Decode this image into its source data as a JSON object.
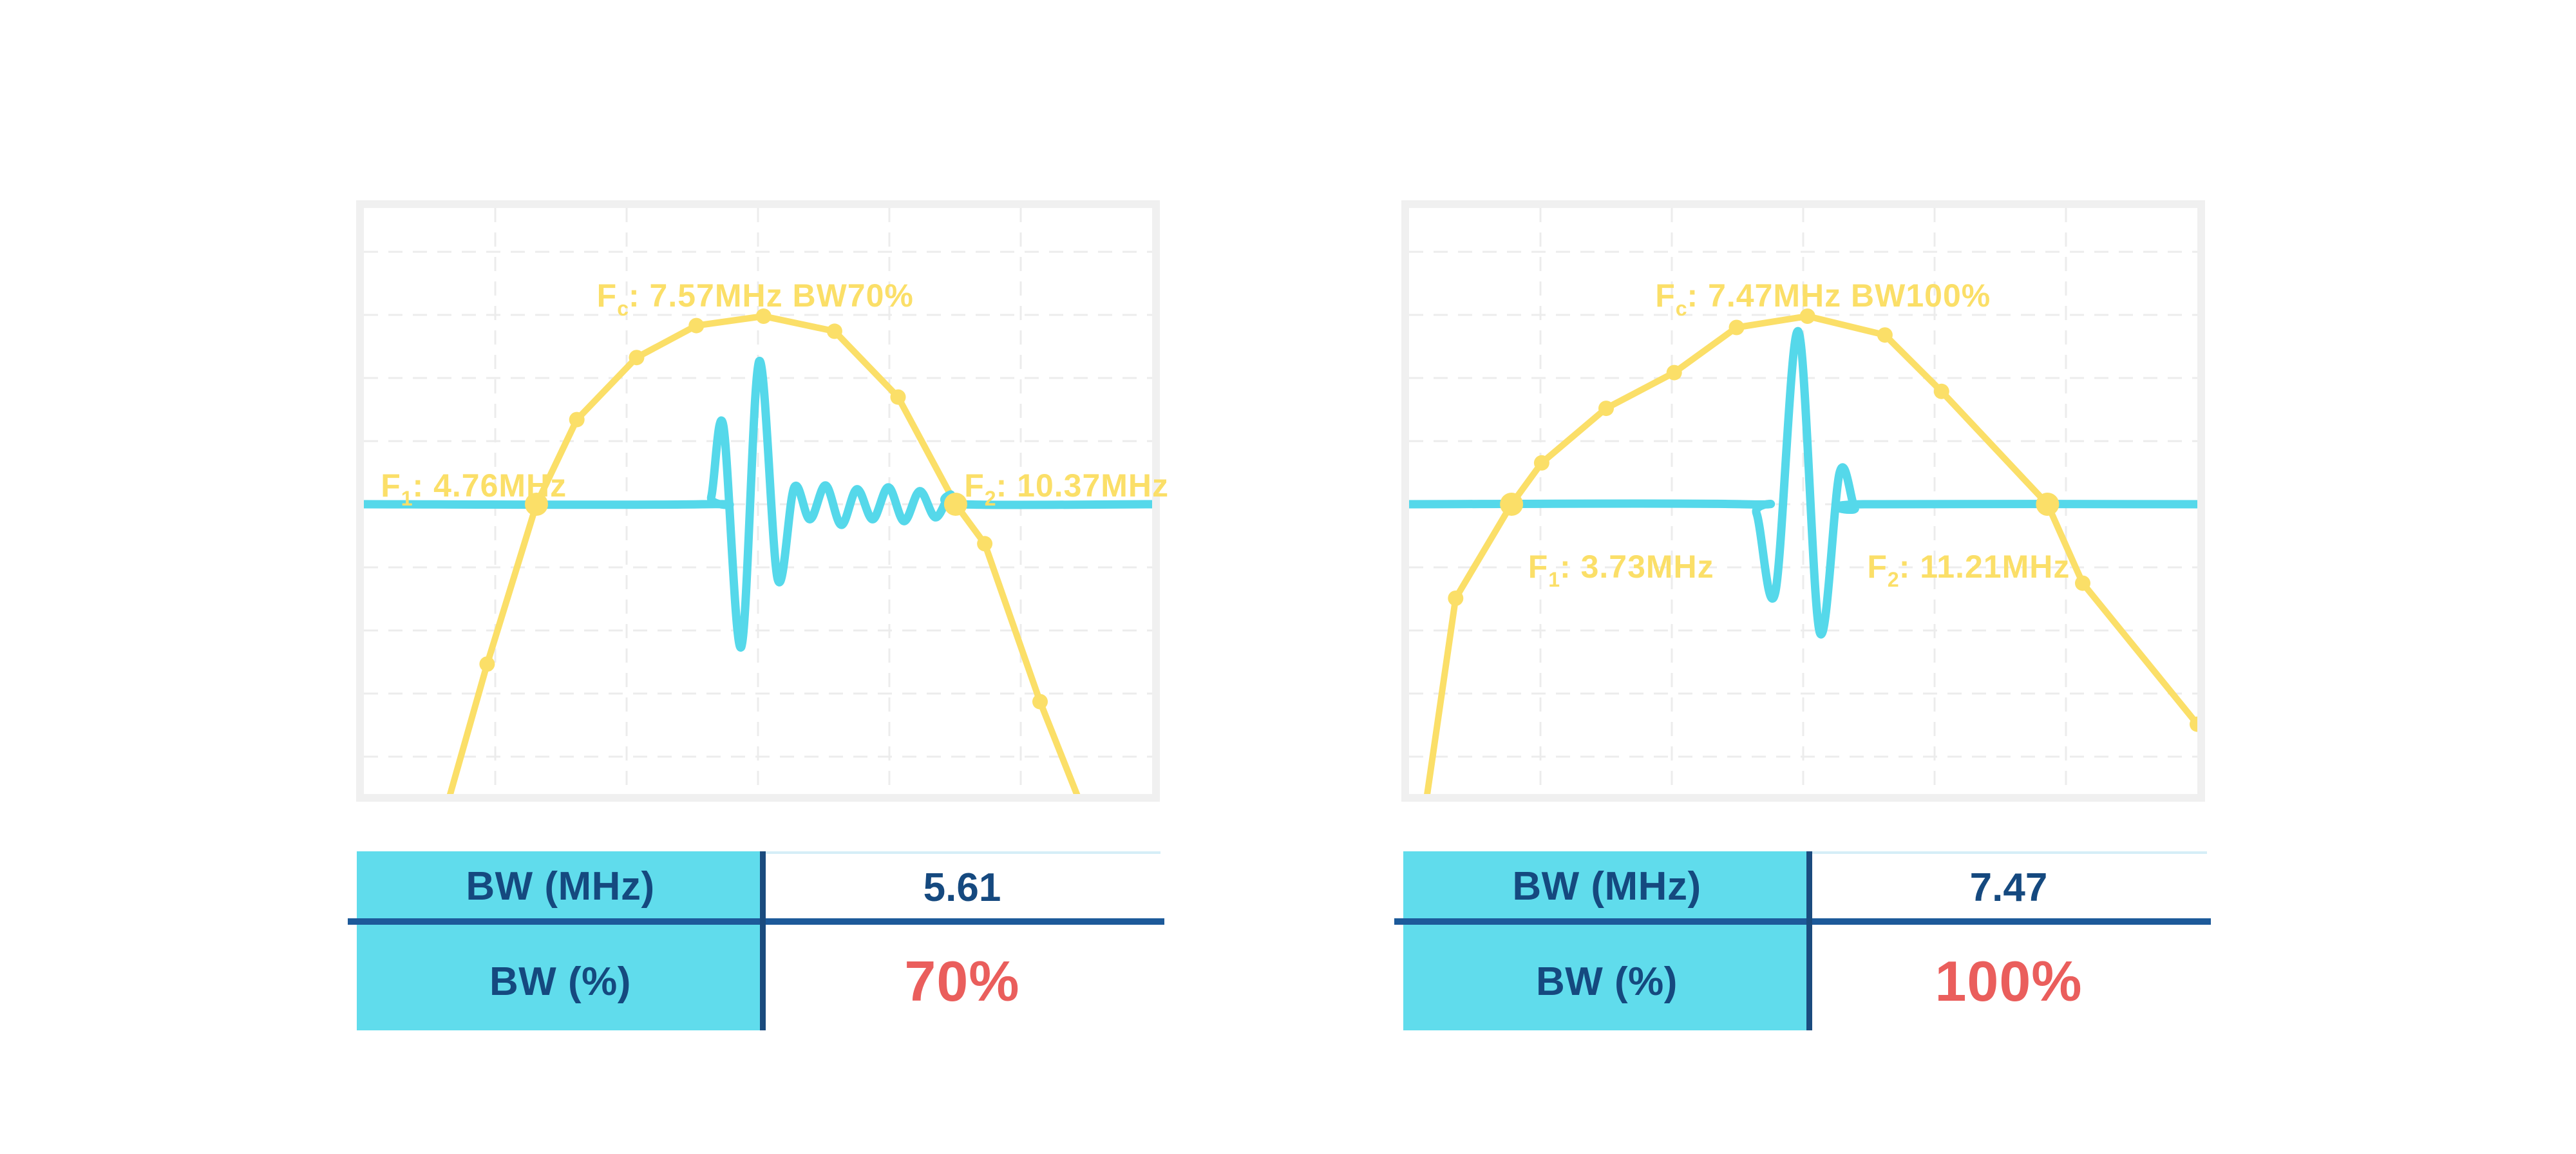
{
  "colors": {
    "yellow": "#FBDF68",
    "cyan": "#55D8EA",
    "grid": "#ECECEC",
    "frame": "#F0F0F0",
    "table_header_bg": "#60DCEC",
    "navy_text": "#15497F",
    "divider_blue": "#1D5A9A",
    "divider_navy": "#1B4B7E",
    "red_value": "#EA5E5C",
    "value_col_top_border": "#D5EEF7"
  },
  "chart_data": [
    {
      "type": "line",
      "title": "Fc: 7.57MHz BW70%",
      "fc_mhz": 7.57,
      "f1_mhz": 4.76,
      "f2_mhz": 10.37,
      "bw_mhz": 5.61,
      "bw_pct": 70,
      "x_range_mhz": [
        2.45,
        13.0
      ],
      "grid": "dashed",
      "legend": "none",
      "labels": {
        "fc": {
          "f": "F",
          "sub": "c",
          "rest": ": 7.57MHz BW70%"
        },
        "f1": {
          "f": "F",
          "sub": "1",
          "rest": ": 4.76MHz"
        },
        "f2": {
          "f": "F",
          "sub": "2",
          "rest": ": 10.37MHz"
        }
      },
      "series": [
        {
          "name": "spectrum",
          "color": "#FBDF68",
          "points": [
            [
              3.6,
              -1.55,
              ""
            ],
            [
              4.1,
              -0.85,
              "m"
            ],
            [
              4.76,
              0,
              "M"
            ],
            [
              5.3,
              0.45,
              "m"
            ],
            [
              6.1,
              0.78,
              "m"
            ],
            [
              6.9,
              0.95,
              "m"
            ],
            [
              7.8,
              1.0,
              "m"
            ],
            [
              8.75,
              0.92,
              "m"
            ],
            [
              9.6,
              0.57,
              "m"
            ],
            [
              10.37,
              0,
              "M"
            ],
            [
              10.76,
              -0.21,
              "m"
            ],
            [
              11.5,
              -1.05,
              "m"
            ],
            [
              12.0,
              -1.55,
              ""
            ]
          ]
        },
        {
          "name": "pulse",
          "color": "#55D8EA",
          "points": [
            [
              2.45,
              0
            ],
            [
              6.98,
              0
            ],
            [
              7.1,
              0.04
            ],
            [
              7.26,
              0.42
            ],
            [
              7.5,
              -0.76
            ],
            [
              7.74,
              0.76
            ],
            [
              7.99,
              -0.4
            ],
            [
              8.21,
              0.09
            ],
            [
              8.42,
              -0.08
            ],
            [
              8.63,
              0.1
            ],
            [
              8.84,
              -0.11
            ],
            [
              9.05,
              0.08
            ],
            [
              9.26,
              -0.08
            ],
            [
              9.47,
              0.09
            ],
            [
              9.68,
              -0.09
            ],
            [
              9.89,
              0.07
            ],
            [
              10.1,
              -0.07
            ],
            [
              10.3,
              0.05
            ],
            [
              10.45,
              0
            ],
            [
              13.0,
              0
            ]
          ]
        }
      ]
    },
    {
      "type": "line",
      "title": "Fc: 7.47MHz BW100%",
      "fc_mhz": 7.47,
      "f1_mhz": 3.73,
      "f2_mhz": 11.21,
      "bw_mhz": 7.47,
      "bw_pct": 100,
      "x_range_mhz": [
        2.3,
        13.3
      ],
      "grid": "dashed",
      "legend": "none",
      "labels": {
        "fc": {
          "f": "F",
          "sub": "c",
          "rest": ": 7.47MHz BW100%"
        },
        "f1": {
          "f": "F",
          "sub": "1",
          "rest": ": 3.73MHz"
        },
        "f2": {
          "f": "F",
          "sub": "2",
          "rest": ": 11.21MHz"
        }
      },
      "series": [
        {
          "name": "spectrum",
          "color": "#FBDF68",
          "points": [
            [
              2.55,
              -1.55,
              ""
            ],
            [
              2.95,
              -0.5,
              "m"
            ],
            [
              3.73,
              0,
              "M"
            ],
            [
              4.15,
              0.22,
              "m"
            ],
            [
              5.05,
              0.51,
              "m"
            ],
            [
              6.0,
              0.7,
              "m"
            ],
            [
              6.87,
              0.94,
              "m"
            ],
            [
              7.86,
              1.0,
              "m"
            ],
            [
              8.94,
              0.9,
              "m"
            ],
            [
              9.73,
              0.6,
              "m"
            ],
            [
              11.21,
              0,
              "M"
            ],
            [
              11.7,
              -0.42,
              "m"
            ],
            [
              13.3,
              -1.17,
              "m"
            ]
          ]
        },
        {
          "name": "pulse",
          "color": "#55D8EA",
          "points": [
            [
              2.3,
              0
            ],
            [
              6.95,
              0
            ],
            [
              7.15,
              -0.05
            ],
            [
              7.41,
              -0.47
            ],
            [
              7.73,
              0.92
            ],
            [
              8.03,
              -0.68
            ],
            [
              8.31,
              0.17
            ],
            [
              8.52,
              -0.02
            ],
            [
              8.65,
              0
            ],
            [
              13.3,
              0
            ]
          ]
        }
      ]
    }
  ],
  "tables": [
    {
      "rows": [
        {
          "label": "BW (MHz)",
          "value": "5.61"
        },
        {
          "label": "BW (%)",
          "value": "70%"
        }
      ]
    },
    {
      "rows": [
        {
          "label": "BW (MHz)",
          "value": "7.47"
        },
        {
          "label": "BW (%)",
          "value": "100%"
        }
      ]
    }
  ]
}
